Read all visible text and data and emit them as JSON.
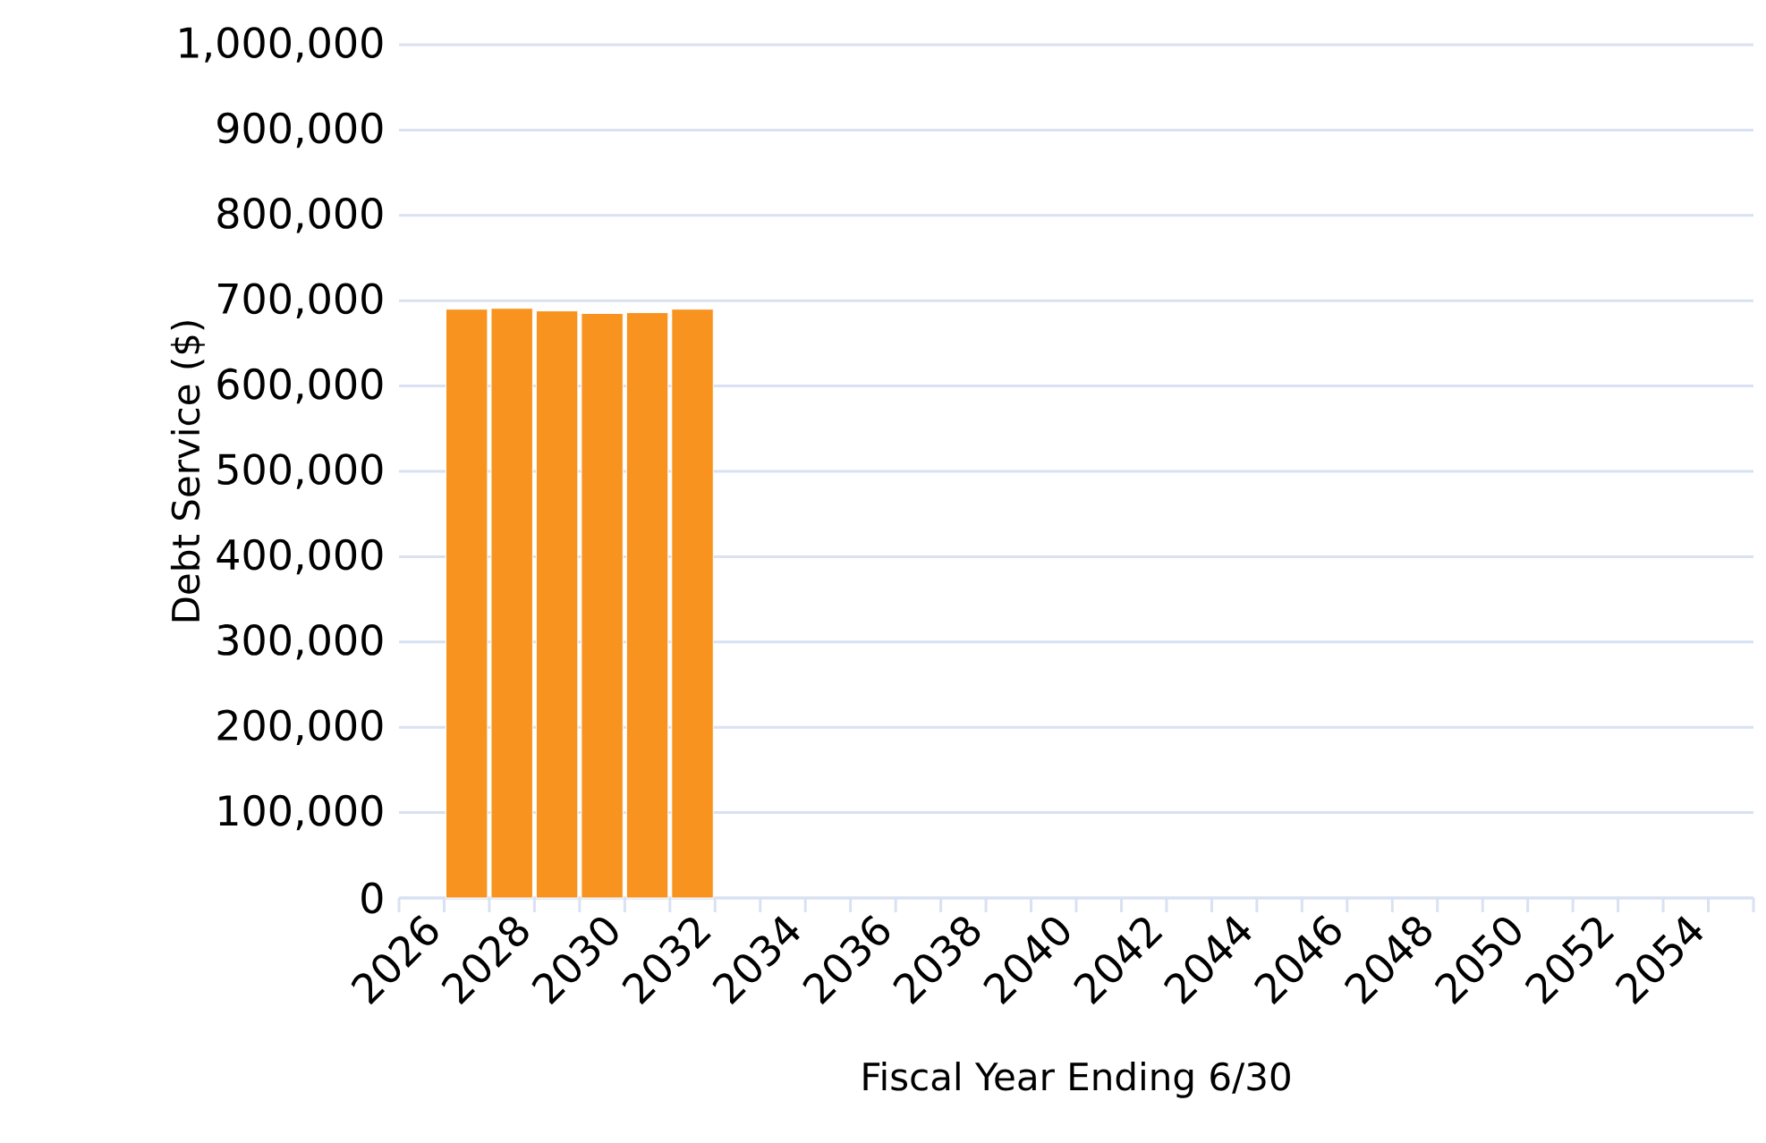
{
  "chart_data": {
    "type": "bar",
    "xlabel": "Fiscal Year Ending 6/30",
    "ylabel": "Debt Service ($)",
    "categories": [
      "2026",
      null,
      "2028",
      null,
      "2030",
      null,
      "2032",
      null,
      "2034",
      null,
      "2036",
      null,
      "2038",
      null,
      "2040",
      null,
      "2042",
      null,
      "2044",
      null,
      "2046",
      null,
      "2048",
      null,
      "2050",
      null,
      "2052",
      null,
      "2054",
      null
    ],
    "values": [
      null,
      690000,
      691000,
      688000,
      685000,
      686000,
      690000,
      null,
      null,
      null,
      null,
      null,
      null,
      null,
      null,
      null,
      null,
      null,
      null,
      null,
      null,
      null,
      null,
      null,
      null,
      null,
      null,
      null,
      null,
      null
    ],
    "color": "#f7931e",
    "ylim": [
      0,
      1000000
    ],
    "yticks": [
      {
        "value": 0,
        "label": "0"
      },
      {
        "value": 100000,
        "label": "100,000"
      },
      {
        "value": 200000,
        "label": "200,000"
      },
      {
        "value": 300000,
        "label": "300,000"
      },
      {
        "value": 400000,
        "label": "400,000"
      },
      {
        "value": 500000,
        "label": "500,000"
      },
      {
        "value": 600000,
        "label": "600,000"
      },
      {
        "value": 700000,
        "label": "700,000"
      },
      {
        "value": 800000,
        "label": "800,000"
      },
      {
        "value": 900000,
        "label": "900,000"
      },
      {
        "value": 1000000,
        "label": "1,000,000"
      }
    ],
    "grid": "y"
  }
}
